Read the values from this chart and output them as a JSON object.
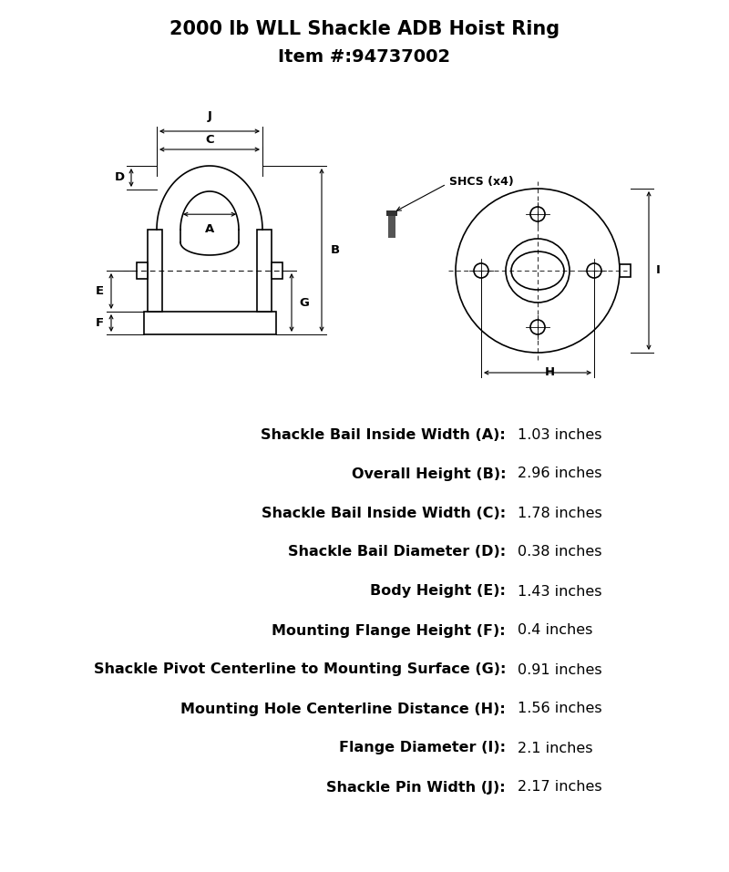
{
  "title_line1": "2000 lb WLL Shackle ADB Hoist Ring",
  "title_line2": "Item #:94737002",
  "title_fontsize": 15,
  "subtitle_fontsize": 14,
  "specs": [
    {
      "label": "Shackle Bail Inside Width (A):",
      "value": "1.03 inches"
    },
    {
      "label": "Overall Height (B):",
      "value": "2.96 inches"
    },
    {
      "label": "Shackle Bail Inside Width (C):",
      "value": "1.78 inches"
    },
    {
      "label": "Shackle Bail Diameter (D):",
      "value": "0.38 inches"
    },
    {
      "label": "Body Height (E):",
      "value": "1.43 inches"
    },
    {
      "label": "Mounting Flange Height (F):",
      "value": "0.4 inches"
    },
    {
      "label": "Shackle Pivot Centerline to Mounting Surface (G):",
      "value": "0.91 inches"
    },
    {
      "label": "Mounting Hole Centerline Distance (H):",
      "value": "1.56 inches"
    },
    {
      "label": "Flange Diameter (I):",
      "value": "2.1 inches"
    },
    {
      "label": "Shackle Pin Width (J):",
      "value": "2.17 inches"
    }
  ],
  "spec_fontsize": 11.5,
  "line_color": "#000000",
  "bg_color": "#ffffff"
}
